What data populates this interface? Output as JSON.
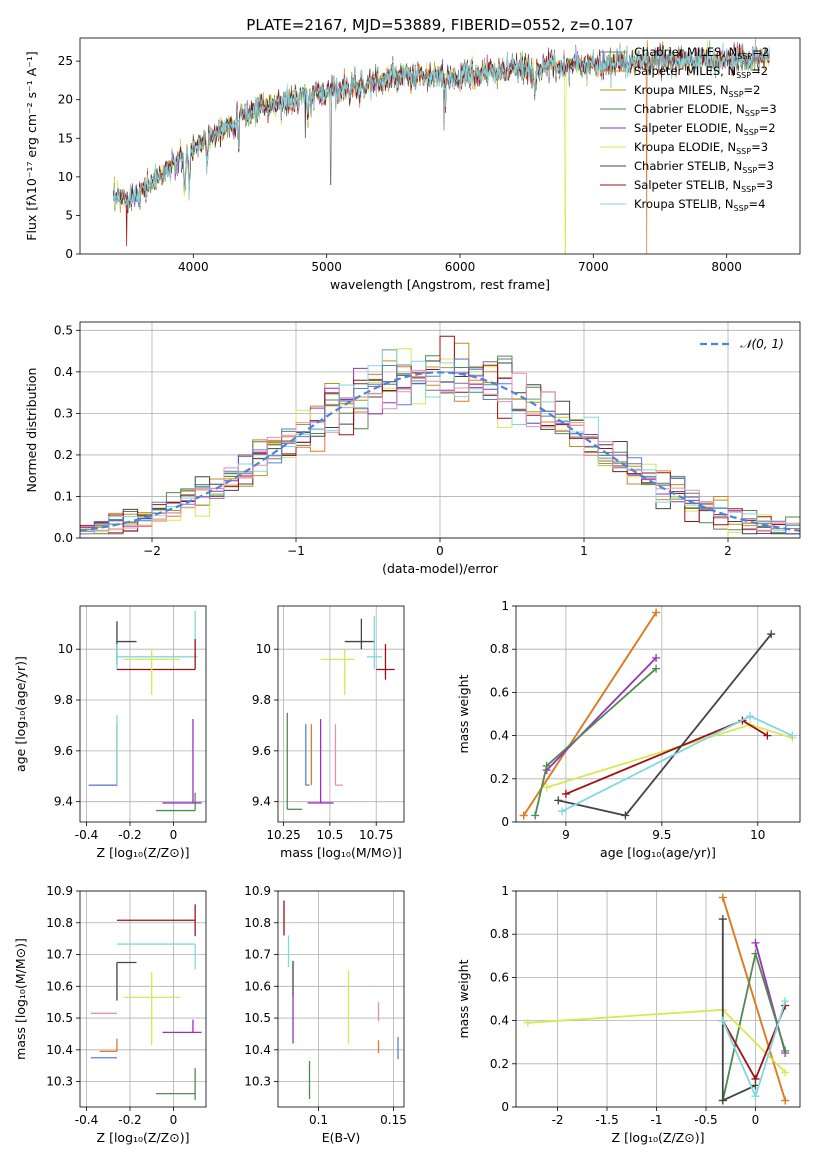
{
  "figure_title": "PLATE=2167, MJD=53889, FIBERID=0552, z=0.107",
  "colors": {
    "Chabrier MILES": "#777777",
    "Salpeter MILES": "#e07b2a",
    "Kroupa MILES": "#b8941f",
    "Chabrier ELODIE": "#4f8a4f",
    "Salpeter ELODIE": "#9b30c0",
    "Kroupa ELODIE": "#d8e850",
    "Chabrier STELIB": "#444444",
    "Salpeter STELIB": "#a01010",
    "Kroupa STELIB": "#80d8e0",
    "extra_blue": "#5b7fd8",
    "extra_pink": "#e890b0",
    "gaussian": "#4a86d8"
  },
  "chart_data": [
    {
      "id": "spectrum",
      "type": "line",
      "title": "PLATE=2167, MJD=53889, FIBERID=0552, z=0.107",
      "xlabel": "wavelength [Angstrom, rest frame]",
      "ylabel": "Flux [fλ10⁻¹⁷ erg cm⁻² s⁻¹ A⁻¹]",
      "xlim": [
        3150,
        8550
      ],
      "ylim": [
        0,
        28
      ],
      "xticks": [
        "4000",
        "5000",
        "6000",
        "7000",
        "8000"
      ],
      "yticks": [
        "0",
        "5",
        "10",
        "15",
        "20",
        "25"
      ],
      "legend_placement": "right",
      "continuum": {
        "x": [
          3400,
          3550,
          3700,
          3900,
          4100,
          4300,
          4500,
          4700,
          4900,
          5100,
          5300,
          5500,
          5700,
          5900,
          6100,
          6300,
          6500,
          6700,
          6900,
          7100,
          7300,
          7500,
          7700,
          7900,
          8100,
          8300
        ],
        "y": [
          7.0,
          7.6,
          9.4,
          12.2,
          15.2,
          17.2,
          19.0,
          19.8,
          20.6,
          21.5,
          22.0,
          22.8,
          23.0,
          22.8,
          23.3,
          23.7,
          24.0,
          24.3,
          24.6,
          24.7,
          24.9,
          25.0,
          25.1,
          25.2,
          25.3,
          25.5
        ]
      },
      "series": [
        {
          "name": "Chabrier MILES, N",
          "sub": "SSP",
          "n": "=2",
          "color_key": "Chabrier MILES"
        },
        {
          "name": "Salpeter MILES, N",
          "sub": "SSP",
          "n": "=2",
          "color_key": "Salpeter MILES"
        },
        {
          "name": "Kroupa MILES, N",
          "sub": "SSP",
          "n": "=2",
          "color_key": "Kroupa MILES"
        },
        {
          "name": "Chabrier ELODIE, N",
          "sub": "SSP",
          "n": "=3",
          "color_key": "Chabrier ELODIE"
        },
        {
          "name": "Salpeter ELODIE, N",
          "sub": "SSP",
          "n": "=2",
          "color_key": "Salpeter ELODIE"
        },
        {
          "name": "Kroupa ELODIE, N",
          "sub": "SSP",
          "n": "=3",
          "color_key": "Kroupa ELODIE"
        },
        {
          "name": "Chabrier STELIB, N",
          "sub": "SSP",
          "n": "=3",
          "color_key": "Chabrier STELIB"
        },
        {
          "name": "Salpeter STELIB, N",
          "sub": "SSP",
          "n": "=3",
          "color_key": "Salpeter STELIB"
        },
        {
          "name": "Kroupa STELIB, N",
          "sub": "SSP",
          "n": "=4",
          "color_key": "Kroupa STELIB"
        }
      ]
    },
    {
      "id": "residuals",
      "type": "histogram",
      "xlabel": "(data-model)/error",
      "ylabel": "Normed distribution",
      "xlim": [
        -2.5,
        2.5
      ],
      "ylim": [
        0,
        0.52
      ],
      "xticks": [
        "−2",
        "−1",
        "0",
        "1",
        "2"
      ],
      "yticks": [
        "0.0",
        "0.1",
        "0.2",
        "0.3",
        "0.4",
        "0.5"
      ],
      "grid": true,
      "legend": "𝒩(0, 1)",
      "legend_placement": "top-right",
      "bin_width": 0.1,
      "gaussian": {
        "mean": 0,
        "sigma": 1
      }
    },
    {
      "id": "age_vs_Z",
      "type": "errorbar",
      "xlabel": "Z [log₁₀(Z/Z⊙)]",
      "ylabel": "age  [log₁₀(age/yr)]",
      "xlim": [
        -0.43,
        0.15
      ],
      "ylim": [
        9.32,
        10.17
      ],
      "xticks": [
        -0.4,
        -0.2,
        0.0
      ],
      "xticklabels": [
        "−0.4",
        "−0.2",
        "0.0"
      ],
      "yticks": [
        9.4,
        9.6,
        9.8,
        10.0
      ],
      "yticklabels": [
        "9.4",
        "9.6",
        "9.8",
        "10.0"
      ],
      "grid": true,
      "points": [
        {
          "color_key": "Chabrier STELIB",
          "x": -0.26,
          "xe": [
            0,
            0.09
          ],
          "y": 10.03,
          "ye": [
            0.09,
            0.08
          ]
        },
        {
          "color_key": "Kroupa STELIB",
          "x": -0.26,
          "xe": [
            0,
            0.37
          ],
          "y": 9.97,
          "ye": [
            0.05,
            0.05
          ]
        },
        {
          "color_key": "Salpeter STELIB",
          "x": -0.26,
          "xe": [
            0,
            0.36
          ],
          "y": 9.92,
          "ye": [
            0,
            0
          ]
        },
        {
          "color_key": "Kroupa STELIB",
          "x": 0.1,
          "xe": [
            0,
            0
          ],
          "y": 10.03,
          "ye": [
            0.03,
            0.12
          ]
        },
        {
          "color_key": "Salpeter STELIB",
          "x": 0.1,
          "xe": [
            0,
            0
          ],
          "y": 9.99,
          "ye": [
            0.07,
            0.05
          ]
        },
        {
          "color_key": "Kroupa ELODIE",
          "x": -0.1,
          "xe": [
            0.13,
            0.13
          ],
          "y": 9.96,
          "ye": [
            0.14,
            0.04
          ]
        },
        {
          "color_key": "Salpeter MILES",
          "x": -0.26,
          "xe": [
            0.13,
            0
          ],
          "y": 9.465,
          "ye": [
            0,
            0.24
          ]
        },
        {
          "color_key": "Kroupa STELIB",
          "x": -0.26,
          "xe": [
            0,
            0
          ],
          "y": 9.6,
          "ye": [
            0.14,
            0.14
          ]
        },
        {
          "color_key": "extra_blue",
          "x": -0.33,
          "xe": [
            0.06,
            0.07
          ],
          "y": 9.465,
          "ye": [
            0,
            0
          ]
        },
        {
          "color_key": "Salpeter ELODIE",
          "x": 0.09,
          "xe": [
            0.14,
            0.04
          ],
          "y": 9.395,
          "ye": [
            0,
            0.33
          ]
        },
        {
          "color_key": "Chabrier ELODIE",
          "x": 0.1,
          "xe": [
            0.18,
            0
          ],
          "y": 9.365,
          "ye": [
            0,
            0.07
          ]
        }
      ]
    },
    {
      "id": "age_vs_mass",
      "type": "errorbar",
      "xlabel": "mass [log₁₀(M/M⊙)]",
      "xlim": [
        10.22,
        10.9
      ],
      "ylim": [
        9.32,
        10.17
      ],
      "xticks": [
        10.25,
        10.5,
        10.75
      ],
      "xticklabels": [
        "10.25",
        "10.50",
        "10.75"
      ],
      "yticks": [
        9.4,
        9.6,
        9.8,
        10.0
      ],
      "yticklabels": [
        "9.4",
        "9.6",
        "9.8",
        "10.0"
      ],
      "grid": true,
      "points": [
        {
          "color_key": "Chabrier STELIB",
          "x": 10.67,
          "xe": [
            0.09,
            0.07
          ],
          "y": 10.03,
          "ye": [
            0.03,
            0.09
          ]
        },
        {
          "color_key": "Kroupa STELIB",
          "x": 10.74,
          "xe": [
            0.04,
            0.04
          ],
          "y": 9.97,
          "ye": [
            0.05,
            0.16
          ]
        },
        {
          "color_key": "Salpeter STELIB",
          "x": 10.8,
          "xe": [
            0.05,
            0.05
          ],
          "y": 9.92,
          "ye": [
            0.04,
            0.1
          ]
        },
        {
          "color_key": "Kroupa ELODIE",
          "x": 10.58,
          "xe": [
            0.13,
            0.05
          ],
          "y": 9.96,
          "ye": [
            0.14,
            0.04
          ]
        },
        {
          "color_key": "Chabrier ELODIE",
          "x": 10.27,
          "xe": [
            0,
            0.08
          ],
          "y": 9.37,
          "ye": [
            0,
            0.38
          ]
        },
        {
          "color_key": "extra_blue",
          "x": 10.37,
          "xe": [
            0,
            0.02
          ],
          "y": 9.465,
          "ye": [
            0,
            0.24
          ]
        },
        {
          "color_key": "Salpeter MILES",
          "x": 10.4,
          "xe": [
            0,
            0
          ],
          "y": 9.465,
          "ye": [
            0,
            0.24
          ]
        },
        {
          "color_key": "Salpeter ELODIE",
          "x": 10.45,
          "xe": [
            0.07,
            0.07
          ],
          "y": 9.395,
          "ye": [
            0,
            0.33
          ]
        },
        {
          "color_key": "extra_pink",
          "x": 10.53,
          "xe": [
            0,
            0.04
          ],
          "y": 9.465,
          "ye": [
            0,
            0.24
          ]
        }
      ]
    },
    {
      "id": "weight_vs_age",
      "type": "line",
      "xlabel": "age  [log₁₀(age/yr)]",
      "ylabel": "mass weight",
      "xlim": [
        8.74,
        10.22
      ],
      "ylim": [
        0,
        1
      ],
      "xticks": [
        9.0,
        9.5,
        10.0
      ],
      "xticklabels": [
        "9.0",
        "9.5",
        "10.0"
      ],
      "yticks": [
        0,
        0.2,
        0.4,
        0.6,
        0.8,
        1.0
      ],
      "yticklabels": [
        "0.0",
        "0.2",
        "0.4",
        "0.6",
        "0.8",
        "1.0"
      ],
      "grid": true,
      "series": [
        {
          "color_key": "Kroupa MILES",
          "x": [
            8.78,
            9.47
          ],
          "y": [
            0.03,
            0.97
          ]
        },
        {
          "color_key": "Salpeter MILES",
          "x": [
            8.78,
            9.47
          ],
          "y": [
            0.03,
            0.97
          ]
        },
        {
          "color_key": "Salpeter ELODIE",
          "x": [
            8.9,
            9.47
          ],
          "y": [
            0.24,
            0.76
          ]
        },
        {
          "color_key": "Chabrier ELODIE",
          "x": [
            8.84,
            8.9,
            9.47
          ],
          "y": [
            0.03,
            0.26,
            0.71
          ]
        },
        {
          "color_key": "Kroupa ELODIE",
          "x": [
            8.9,
            9.96,
            10.18
          ],
          "y": [
            0.16,
            0.45,
            0.39
          ]
        },
        {
          "color_key": "Salpeter STELIB",
          "x": [
            9.0,
            9.92,
            10.05
          ],
          "y": [
            0.13,
            0.47,
            0.4
          ]
        },
        {
          "color_key": "Chabrier STELIB",
          "x": [
            8.96,
            9.31,
            10.07
          ],
          "y": [
            0.1,
            0.03,
            0.87
          ]
        },
        {
          "color_key": "Kroupa STELIB",
          "x": [
            8.98,
            9.96,
            10.18
          ],
          "y": [
            0.05,
            0.49,
            0.4
          ]
        }
      ]
    },
    {
      "id": "mass_vs_Z",
      "type": "errorbar",
      "xlabel": "Z [log₁₀(Z/Z⊙)]",
      "ylabel": "mass [log₁₀(M/M⊙)]",
      "xlim": [
        -0.43,
        0.15
      ],
      "ylim": [
        10.22,
        10.9
      ],
      "xticks": [
        -0.4,
        -0.2,
        0.0
      ],
      "xticklabels": [
        "−0.4",
        "−0.2",
        "0.0"
      ],
      "yticks": [
        10.3,
        10.4,
        10.5,
        10.6,
        10.7,
        10.8,
        10.9
      ],
      "yticklabels": [
        "10.3",
        "10.4",
        "10.5",
        "10.6",
        "10.7",
        "10.8",
        "10.9"
      ],
      "grid": true,
      "points": [
        {
          "color_key": "Salpeter STELIB",
          "x": 0.1,
          "xe": [
            0.36,
            0
          ],
          "y": 10.808,
          "ye": [
            0.05,
            0.05
          ]
        },
        {
          "color_key": "Kroupa STELIB",
          "x": 0.1,
          "xe": [
            0.36,
            0
          ],
          "y": 10.733,
          "ye": [
            0.08,
            0
          ]
        },
        {
          "color_key": "Chabrier STELIB",
          "x": -0.26,
          "xe": [
            0,
            0.09
          ],
          "y": 10.675,
          "ye": [
            0.12,
            0
          ]
        },
        {
          "color_key": "Kroupa ELODIE",
          "x": -0.1,
          "xe": [
            0.13,
            0.13
          ],
          "y": 10.565,
          "ye": [
            0.15,
            0.08
          ]
        },
        {
          "color_key": "extra_pink",
          "x": -0.26,
          "xe": [
            0.12,
            0
          ],
          "y": 10.515,
          "ye": [
            0,
            0
          ]
        },
        {
          "color_key": "Salpeter ELODIE",
          "x": 0.09,
          "xe": [
            0.14,
            0.04
          ],
          "y": 10.455,
          "ye": [
            0,
            0.04
          ]
        },
        {
          "color_key": "Salpeter MILES",
          "x": -0.26,
          "xe": [
            0.08,
            0
          ],
          "y": 10.395,
          "ye": [
            0,
            0.04
          ]
        },
        {
          "color_key": "extra_blue",
          "x": -0.26,
          "xe": [
            0.12,
            0
          ],
          "y": 10.375,
          "ye": [
            0,
            0
          ]
        },
        {
          "color_key": "Chabrier ELODIE",
          "x": 0.1,
          "xe": [
            0.18,
            0
          ],
          "y": 10.262,
          "ye": [
            0.02,
            0.08
          ]
        }
      ]
    },
    {
      "id": "mass_vs_ebv",
      "type": "errorbar",
      "xlabel": "E(B-V)",
      "xlim": [
        0.073,
        0.157
      ],
      "ylim": [
        10.22,
        10.9
      ],
      "xticks": [
        0.1,
        0.15
      ],
      "xticklabels": [
        "0.10",
        "0.15"
      ],
      "yticks": [
        10.3,
        10.4,
        10.5,
        10.6,
        10.7,
        10.8,
        10.9
      ],
      "yticklabels": [
        "10.3",
        "10.4",
        "10.5",
        "10.6",
        "10.7",
        "10.8",
        "10.9"
      ],
      "grid": true,
      "points": [
        {
          "color_key": "Salpeter STELIB",
          "x": 0.077,
          "xe": [
            0,
            0
          ],
          "y": 10.81,
          "ye": [
            0.05,
            0.06
          ]
        },
        {
          "color_key": "Kroupa STELIB",
          "x": 0.08,
          "xe": [
            0,
            0
          ],
          "y": 10.71,
          "ye": [
            0.05,
            0.05
          ]
        },
        {
          "color_key": "Chabrier STELIB",
          "x": 0.083,
          "xe": [
            0,
            0
          ],
          "y": 10.62,
          "ye": [
            0.05,
            0.06
          ]
        },
        {
          "color_key": "Salpeter ELODIE",
          "x": 0.083,
          "xe": [
            0,
            0
          ],
          "y": 10.5,
          "ye": [
            0.08,
            0.08
          ]
        },
        {
          "color_key": "Chabrier ELODIE",
          "x": 0.094,
          "xe": [
            0,
            0
          ],
          "y": 10.305,
          "ye": [
            0.06,
            0.06
          ]
        },
        {
          "color_key": "Kroupa ELODIE",
          "x": 0.12,
          "xe": [
            0,
            0
          ],
          "y": 10.53,
          "ye": [
            0.11,
            0.12
          ]
        },
        {
          "color_key": "extra_pink",
          "x": 0.14,
          "xe": [
            0,
            0
          ],
          "y": 10.52,
          "ye": [
            0.03,
            0.03
          ]
        },
        {
          "color_key": "Salpeter MILES",
          "x": 0.14,
          "xe": [
            0,
            0
          ],
          "y": 10.41,
          "ye": [
            0.02,
            0.02
          ]
        },
        {
          "color_key": "extra_blue",
          "x": 0.153,
          "xe": [
            0,
            0
          ],
          "y": 10.41,
          "ye": [
            0.04,
            0.03
          ]
        }
      ]
    },
    {
      "id": "weight_vs_Z",
      "type": "line",
      "xlabel": "Z [log₁₀(Z/Z⊙)]",
      "ylabel": "mass weight",
      "xlim": [
        -2.42,
        0.45
      ],
      "ylim": [
        0,
        1
      ],
      "xticks": [
        -2.0,
        -1.5,
        -1.0,
        -0.5,
        0.0
      ],
      "xticklabels": [
        "−2.0",
        "−1.5",
        "−1.0",
        "−0.5",
        "0.0"
      ],
      "yticks": [
        0,
        0.2,
        0.4,
        0.6,
        0.8,
        1.0
      ],
      "yticklabels": [
        "0.0",
        "0.2",
        "0.4",
        "0.6",
        "0.8",
        "1.0"
      ],
      "grid": true,
      "series": [
        {
          "color_key": "Kroupa MILES",
          "x": [
            -0.33,
            0.3
          ],
          "y": [
            0.97,
            0.03
          ]
        },
        {
          "color_key": "Salpeter MILES",
          "x": [
            -0.33,
            0.3
          ],
          "y": [
            0.97,
            0.03
          ]
        },
        {
          "color_key": "Salpeter ELODIE",
          "x": [
            0.0,
            0.3
          ],
          "y": [
            0.76,
            0.25
          ]
        },
        {
          "color_key": "Chabrier ELODIE",
          "x": [
            -0.33,
            0.0,
            0.3
          ],
          "y": [
            0.03,
            0.71,
            0.26
          ]
        },
        {
          "color_key": "Kroupa ELODIE",
          "x": [
            -2.3,
            -0.33,
            0.3
          ],
          "y": [
            0.39,
            0.45,
            0.16
          ]
        },
        {
          "color_key": "Salpeter STELIB",
          "x": [
            -0.33,
            0.0,
            0.3
          ],
          "y": [
            0.4,
            0.13,
            0.47
          ]
        },
        {
          "color_key": "Chabrier STELIB",
          "x": [
            -0.33,
            -0.33,
            0.0
          ],
          "y": [
            0.87,
            0.03,
            0.1
          ]
        },
        {
          "color_key": "Kroupa STELIB",
          "x": [
            -0.33,
            0.0,
            0.3
          ],
          "y": [
            0.4,
            0.05,
            0.49
          ]
        }
      ]
    }
  ]
}
